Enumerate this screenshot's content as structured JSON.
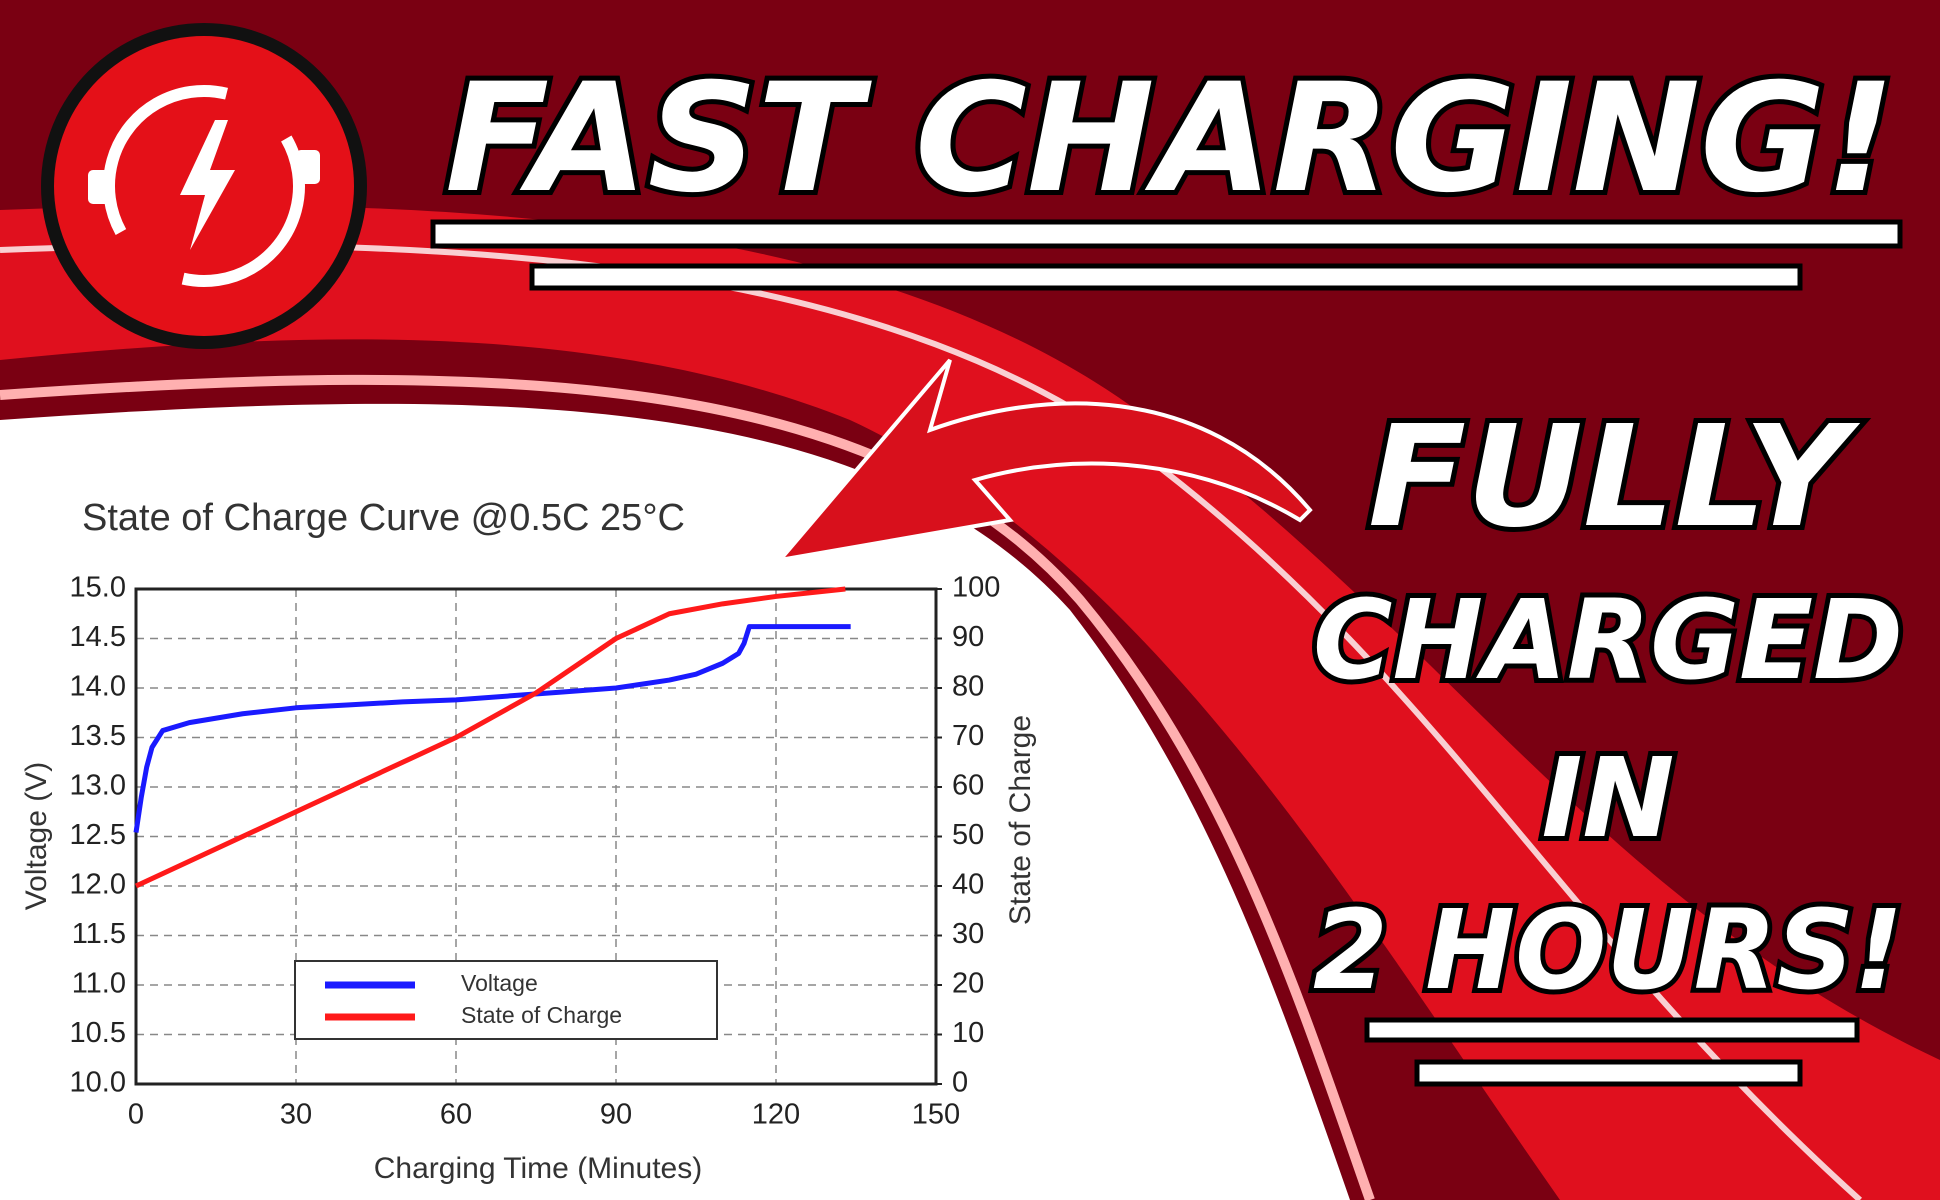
{
  "headline": "FAST CHARGING!",
  "tagline": [
    "FULLY",
    "CHARGED",
    "IN",
    "2 HOURS!"
  ],
  "chart_data": {
    "type": "line",
    "title": "State of Charge Curve @0.5C 25°C",
    "x_label": "Charging Time (Minutes)",
    "y_label": "Voltage (V)",
    "y2_label": "State of Charge",
    "xlim": [
      0,
      150
    ],
    "xticks": [
      0,
      30,
      60,
      90,
      120,
      150
    ],
    "ylim": [
      10,
      15
    ],
    "yticks": [
      {
        "value": 10,
        "label": "10.0"
      },
      {
        "value": 10.5,
        "label": "10.5"
      },
      {
        "value": 11,
        "label": "11.0"
      },
      {
        "value": 11.5,
        "label": "11.5"
      },
      {
        "value": 12,
        "label": "12.0"
      },
      {
        "value": 12.5,
        "label": "12.5"
      },
      {
        "value": 13,
        "label": "13.0"
      },
      {
        "value": 13.5,
        "label": "13.5"
      },
      {
        "value": 14,
        "label": "14.0"
      },
      {
        "value": 14.5,
        "label": "14.5"
      },
      {
        "value": 15,
        "label": "15.0"
      }
    ],
    "y2lim": [
      0,
      100
    ],
    "y2ticks": [
      0,
      10,
      20,
      30,
      40,
      50,
      60,
      70,
      80,
      90,
      100
    ],
    "grid": true,
    "legend": "lower center",
    "series": [
      {
        "name": "Voltage",
        "color": "#1a1aff",
        "x": [
          0,
          1,
          2,
          3,
          5,
          10,
          20,
          30,
          40,
          50,
          60,
          70,
          80,
          90,
          100,
          105,
          110,
          113,
          114,
          115,
          120,
          134
        ],
        "values": [
          12.54,
          12.9,
          13.2,
          13.4,
          13.57,
          13.65,
          13.74,
          13.8,
          13.83,
          13.86,
          13.88,
          13.92,
          13.96,
          14.0,
          14.08,
          14.14,
          14.25,
          14.35,
          14.45,
          14.62,
          14.62,
          14.62
        ]
      },
      {
        "name": "State of Charge",
        "color": "#ff1a1a",
        "axis": "y2",
        "x": [
          0,
          30,
          60,
          75,
          90,
          100,
          110,
          120,
          133
        ],
        "values": [
          40,
          55,
          70,
          79,
          90,
          95,
          97,
          98.5,
          100
        ]
      }
    ]
  }
}
